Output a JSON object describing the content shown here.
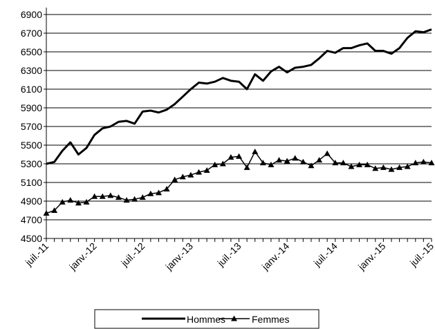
{
  "chart_data": {
    "type": "line",
    "title": "",
    "xlabel": "",
    "ylabel": "",
    "ylim": [
      4500,
      6900
    ],
    "yticks": [
      4500,
      4700,
      4900,
      5100,
      5300,
      5500,
      5700,
      5900,
      6100,
      6300,
      6500,
      6700,
      6900
    ],
    "ytick_labels": [
      "4500",
      "4700",
      "4900",
      "5100",
      "5300",
      "5500",
      "5700",
      "5900",
      "6100",
      "6300",
      "6500",
      "6700",
      "6900"
    ],
    "x_tick_labels": [
      {
        "index": 0,
        "label": "juil.-11"
      },
      {
        "index": 6,
        "label": "janv.-12"
      },
      {
        "index": 12,
        "label": "juil.-12"
      },
      {
        "index": 18,
        "label": "janv.-13"
      },
      {
        "index": 24,
        "label": "juil.-13"
      },
      {
        "index": 30,
        "label": "janv.-14"
      },
      {
        "index": 36,
        "label": "juil.-14"
      },
      {
        "index": 42,
        "label": "janv.-15"
      },
      {
        "index": 48,
        "label": "juil.-15"
      }
    ],
    "grid": "horizontal",
    "legend_position": "bottom",
    "series": [
      {
        "name": "Hommes",
        "color": "#000000",
        "marker": "none",
        "values": [
          5300,
          5320,
          5440,
          5530,
          5400,
          5470,
          5610,
          5680,
          5700,
          5750,
          5760,
          5730,
          5860,
          5870,
          5850,
          5880,
          5940,
          6020,
          6100,
          6170,
          6160,
          6180,
          6220,
          6190,
          6180,
          6100,
          6260,
          6190,
          6290,
          6340,
          6280,
          6330,
          6340,
          6360,
          6430,
          6510,
          6490,
          6540,
          6540,
          6570,
          6590,
          6510,
          6510,
          6480,
          6540,
          6650,
          6720,
          6710,
          6740
        ]
      },
      {
        "name": "Femmes",
        "color": "#000000",
        "marker": "triangle",
        "values": [
          4770,
          4800,
          4890,
          4910,
          4880,
          4890,
          4950,
          4950,
          4960,
          4940,
          4910,
          4920,
          4940,
          4980,
          4990,
          5030,
          5130,
          5160,
          5180,
          5210,
          5230,
          5290,
          5300,
          5370,
          5380,
          5260,
          5430,
          5310,
          5290,
          5340,
          5330,
          5360,
          5320,
          5280,
          5340,
          5410,
          5310,
          5310,
          5270,
          5290,
          5290,
          5250,
          5260,
          5240,
          5260,
          5270,
          5310,
          5320,
          5310
        ]
      }
    ]
  }
}
